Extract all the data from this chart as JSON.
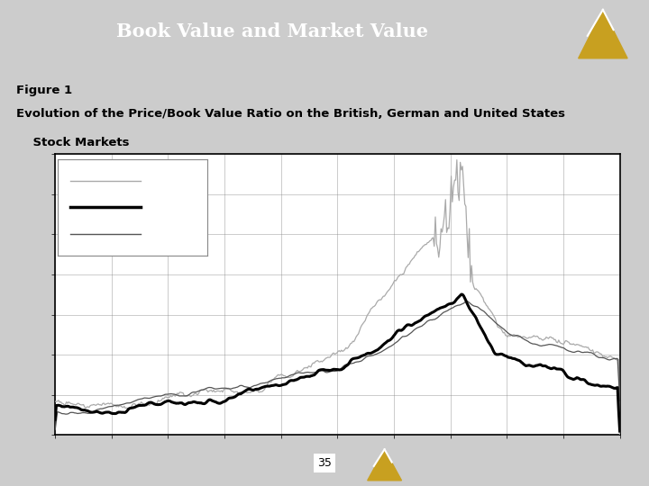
{
  "title": "Book Value and Market Value",
  "subtitle_line1": "Figure 1",
  "subtitle_line2": "Evolution of the Price/Book Value Ratio on the British, German and United States",
  "subtitle_line3": "    Stock Markets",
  "header_bg": "#00008B",
  "header_text_color": "#FFFFFF",
  "separator_color1": "#AA2200",
  "separator_color2": "#999999",
  "body_bg": "#CCCCCC",
  "chart_bg": "#FFFFFF",
  "page_number": "35",
  "footer_bg": "#00008B",
  "n_points": 500,
  "seed": 77
}
